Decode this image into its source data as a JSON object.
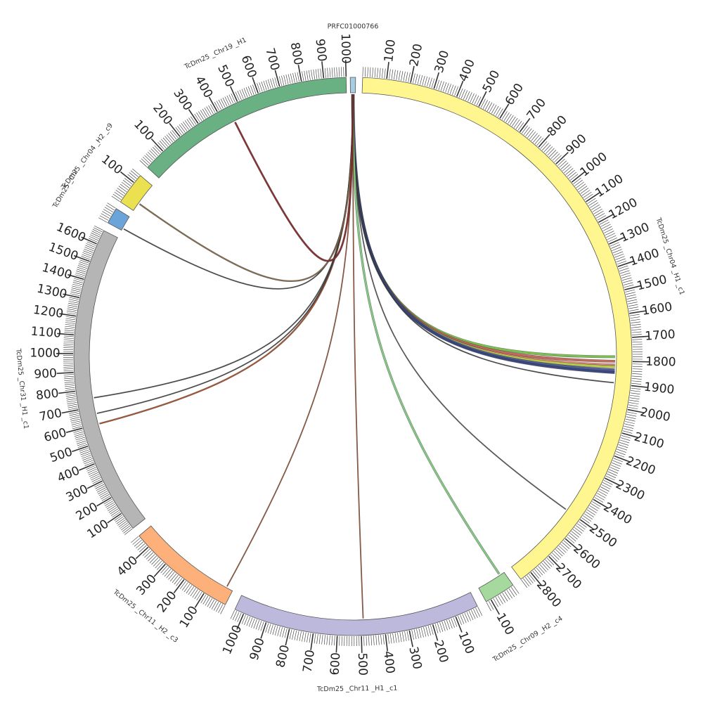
{
  "chromosomes": [
    {
      "name": "PRFC01000766",
      "length": 20,
      "color": "#a6cee3",
      "label_text": "PRFC01000766",
      "label_fontsize": 9.5
    },
    {
      "name": "TcDm25_Chr04_H1_c1",
      "length": 2850,
      "color": "#fff68f",
      "label_text": "TcDm25 _Chr04 _H1 _c1"
    },
    {
      "name": "TcDm25_Chr09_H2_c4",
      "length": 120,
      "color": "#a6d99e",
      "label_text": "TcDm25 _Chr09 _H2 _c4"
    },
    {
      "name": "TcDm25_Chr11_H1_c1",
      "length": 1040,
      "color": "#bcb9dc",
      "label_text": "TcDm25 _Chr11 _H1 _c1"
    },
    {
      "name": "TcDm25_Chr11_H2_c3",
      "length": 460,
      "color": "#fdb07a",
      "label_text": "TcDm25 _Chr11 _H2 _c3"
    },
    {
      "name": "TcDm25_Chr31_H1_c1",
      "length": 1680,
      "color": "#b5b5b5",
      "label_text": "TcDm25 _Chr31 _H1 _c1"
    },
    {
      "name": "TcDm25_ChrX_c",
      "length": 70,
      "color": "#6aa4d8",
      "label_text": "TcDm25 _Chr"
    },
    {
      "name": "TcDm25_Chr04_H2_c9",
      "length": 140,
      "color": "#ebe150",
      "label_text": "TcDm25 _Chr04 _H2 _c9"
    },
    {
      "name": "TcDm25_Chr19_H1",
      "length": 1000,
      "color": "#69b083",
      "label_text": "TcDm25 _Chr19 _H1"
    }
  ],
  "links": [
    {
      "from": "PRFC01000766",
      "from_pos": 10,
      "to": "TcDm25_Chr04_H1_c1",
      "to_pos": 1780,
      "width": 3,
      "color": "#7dc450"
    },
    {
      "from": "PRFC01000766",
      "from_pos": 10,
      "to": "TcDm25_Chr04_H1_c1",
      "to_pos": 1800,
      "width": 3,
      "color": "#c66a5d"
    },
    {
      "from": "PRFC01000766",
      "from_pos": 10,
      "to": "TcDm25_Chr04_H1_c1",
      "to_pos": 1815,
      "width": 2,
      "color": "#e88d7a"
    },
    {
      "from": "PRFC01000766",
      "from_pos": 10,
      "to": "TcDm25_Chr04_H1_c1",
      "to_pos": 1825,
      "width": 3,
      "color": "#c0d04a"
    },
    {
      "from": "PRFC01000766",
      "from_pos": 10,
      "to": "TcDm25_Chr04_H1_c1",
      "to_pos": 1840,
      "width": 4,
      "color": "#4f5f9a"
    },
    {
      "from": "PRFC01000766",
      "from_pos": 10,
      "to": "TcDm25_Chr04_H1_c1",
      "to_pos": 1850,
      "width": 3,
      "color": "#3a4880"
    },
    {
      "from": "PRFC01000766",
      "from_pos": 10,
      "to": "TcDm25_Chr04_H1_c1",
      "to_pos": 1895,
      "width": 1,
      "color": "#444444"
    },
    {
      "from": "PRFC01000766",
      "from_pos": 10,
      "to": "TcDm25_Chr04_H1_c1",
      "to_pos": 2500,
      "width": 1,
      "color": "#555555"
    },
    {
      "from": "PRFC01000766",
      "from_pos": 10,
      "to": "TcDm25_Chr09_H2_c4",
      "to_pos": 20,
      "width": 2.5,
      "color": "#86cc86"
    },
    {
      "from": "PRFC01000766",
      "from_pos": 10,
      "to": "TcDm25_Chr11_H1_c1",
      "to_pos": 490,
      "width": 1,
      "color": "#a0522d"
    },
    {
      "from": "PRFC01000766",
      "from_pos": 10,
      "to": "TcDm25_Chr11_H2_c3",
      "to_pos": 30,
      "width": 1,
      "color": "#a0522d"
    },
    {
      "from": "PRFC01000766",
      "from_pos": 10,
      "to": "TcDm25_Chr31_H1_c1",
      "to_pos": 600,
      "width": 1.5,
      "color": "#b0522d"
    },
    {
      "from": "PRFC01000766",
      "from_pos": 10,
      "to": "TcDm25_Chr31_H1_c1",
      "to_pos": 660,
      "width": 1,
      "color": "#444444"
    },
    {
      "from": "PRFC01000766",
      "from_pos": 10,
      "to": "TcDm25_Chr31_H1_c1",
      "to_pos": 750,
      "width": 1,
      "color": "#444444"
    },
    {
      "from": "PRFC01000766",
      "from_pos": 10,
      "to": "TcDm25_ChrX_c",
      "to_pos": 10,
      "width": 1,
      "color": "#444444"
    },
    {
      "from": "PRFC01000766",
      "from_pos": 10,
      "to": "TcDm25_Chr04_H2_c9",
      "to_pos": 40,
      "width": 1.5,
      "color": "#8a6b4a"
    },
    {
      "from": "PRFC01000766",
      "from_pos": 10,
      "to": "TcDm25_Chr19_H1",
      "to_pos": 450,
      "width": 2,
      "color": "#8b2e2e"
    }
  ]
}
